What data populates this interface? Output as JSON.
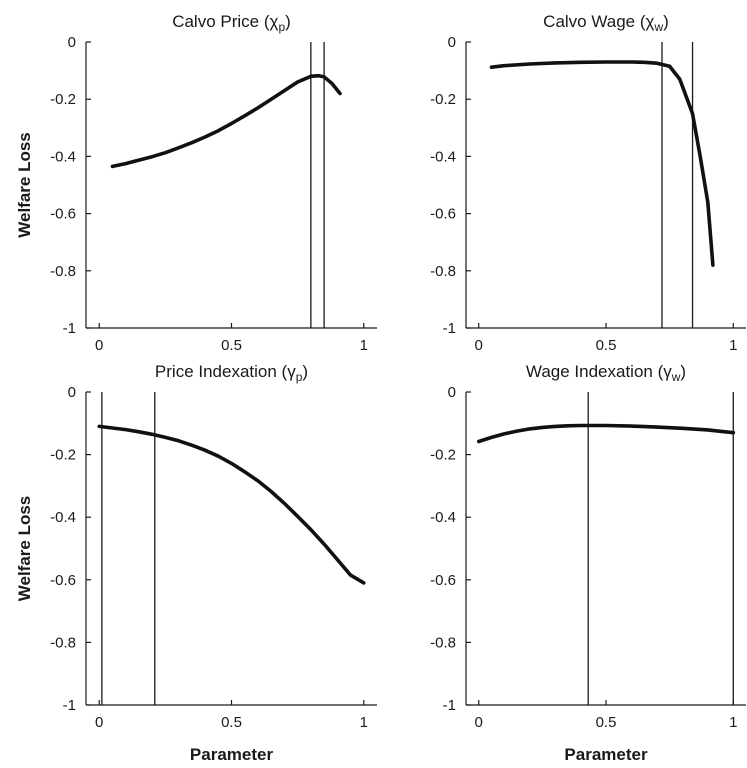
{
  "chart_data": [
    {
      "type": "line",
      "title": "Calvo Price (χp)",
      "title_main": "Calvo Price (",
      "title_sym": "χ",
      "title_sub": "p",
      "title_end": ")",
      "xlabel": "",
      "ylabel": "Welfare Loss",
      "xlim": [
        -0.05,
        1.05
      ],
      "ylim": [
        -1,
        0
      ],
      "xticks": [
        0,
        0.5,
        1
      ],
      "xtick_labels": [
        "0",
        "0.5",
        "1"
      ],
      "yticks": [
        0,
        -0.2,
        -0.4,
        -0.6,
        -0.8,
        -1
      ],
      "ytick_labels": [
        "0",
        "-0.2",
        "-0.4",
        "-0.6",
        "-0.8",
        "-1"
      ],
      "vlines": [
        0.8,
        0.85
      ],
      "series": [
        {
          "x": [
            0.05,
            0.1,
            0.15,
            0.2,
            0.25,
            0.3,
            0.35,
            0.4,
            0.45,
            0.5,
            0.55,
            0.6,
            0.65,
            0.7,
            0.75,
            0.8,
            0.83,
            0.85,
            0.88,
            0.91
          ],
          "y": [
            -0.435,
            -0.425,
            -0.413,
            -0.401,
            -0.387,
            -0.37,
            -0.352,
            -0.332,
            -0.31,
            -0.285,
            -0.258,
            -0.23,
            -0.2,
            -0.17,
            -0.14,
            -0.12,
            -0.118,
            -0.122,
            -0.145,
            -0.18
          ]
        }
      ]
    },
    {
      "type": "line",
      "title": "Calvo Wage (χw)",
      "title_main": "Calvo Wage (",
      "title_sym": "χ",
      "title_sub": "w",
      "title_end": ")",
      "xlabel": "",
      "ylabel": "",
      "xlim": [
        -0.05,
        1.05
      ],
      "ylim": [
        -1,
        0
      ],
      "xticks": [
        0,
        0.5,
        1
      ],
      "xtick_labels": [
        "0",
        "0.5",
        "1"
      ],
      "yticks": [
        0,
        -0.2,
        -0.4,
        -0.6,
        -0.8,
        -1
      ],
      "ytick_labels": [
        "0",
        "-0.2",
        "-0.4",
        "-0.6",
        "-0.8",
        "-1"
      ],
      "vlines": [
        0.72,
        0.84
      ],
      "series": [
        {
          "x": [
            0.05,
            0.1,
            0.2,
            0.3,
            0.4,
            0.5,
            0.6,
            0.65,
            0.7,
            0.75,
            0.79,
            0.84,
            0.87,
            0.9,
            0.92
          ],
          "y": [
            -0.088,
            -0.083,
            -0.077,
            -0.073,
            -0.071,
            -0.07,
            -0.07,
            -0.071,
            -0.074,
            -0.085,
            -0.13,
            -0.25,
            -0.4,
            -0.56,
            -0.78
          ]
        }
      ]
    },
    {
      "type": "line",
      "title": "Price Indexation (γp)",
      "title_main": "Price Indexation (",
      "title_sym": "γ",
      "title_sub": "p",
      "title_end": ")",
      "xlabel": "Parameter",
      "ylabel": "Welfare Loss",
      "xlim": [
        -0.05,
        1.05
      ],
      "ylim": [
        -1,
        0
      ],
      "xticks": [
        0,
        0.5,
        1
      ],
      "xtick_labels": [
        "0",
        "0.5",
        "1"
      ],
      "yticks": [
        0,
        -0.2,
        -0.4,
        -0.6,
        -0.8,
        -1
      ],
      "ytick_labels": [
        "0",
        "-0.2",
        "-0.4",
        "-0.6",
        "-0.8",
        "-1"
      ],
      "vlines": [
        0.01,
        0.21
      ],
      "series": [
        {
          "x": [
            0,
            0.05,
            0.1,
            0.15,
            0.2,
            0.25,
            0.3,
            0.35,
            0.4,
            0.45,
            0.5,
            0.55,
            0.6,
            0.65,
            0.7,
            0.75,
            0.8,
            0.85,
            0.9,
            0.95,
            1.0
          ],
          "y": [
            -0.11,
            -0.115,
            -0.12,
            -0.127,
            -0.135,
            -0.145,
            -0.156,
            -0.17,
            -0.186,
            -0.205,
            -0.228,
            -0.255,
            -0.284,
            -0.318,
            -0.356,
            -0.397,
            -0.44,
            -0.486,
            -0.535,
            -0.585,
            -0.61
          ]
        }
      ]
    },
    {
      "type": "line",
      "title": "Wage Indexation (γw)",
      "title_main": "Wage Indexation (",
      "title_sym": "γ",
      "title_sub": "w",
      "title_end": ")",
      "xlabel": "Parameter",
      "ylabel": "",
      "xlim": [
        -0.05,
        1.05
      ],
      "ylim": [
        -1,
        0
      ],
      "xticks": [
        0,
        0.5,
        1
      ],
      "xtick_labels": [
        "0",
        "0.5",
        "1"
      ],
      "yticks": [
        0,
        -0.2,
        -0.4,
        -0.6,
        -0.8,
        -1
      ],
      "ytick_labels": [
        "0",
        "-0.2",
        "-0.4",
        "-0.6",
        "-0.8",
        "-1"
      ],
      "vlines": [
        0.43,
        1.0
      ],
      "series": [
        {
          "x": [
            0,
            0.05,
            0.1,
            0.15,
            0.2,
            0.25,
            0.3,
            0.35,
            0.4,
            0.45,
            0.5,
            0.6,
            0.7,
            0.8,
            0.9,
            1.0
          ],
          "y": [
            -0.158,
            -0.145,
            -0.134,
            -0.125,
            -0.118,
            -0.113,
            -0.11,
            -0.108,
            -0.107,
            -0.107,
            -0.107,
            -0.109,
            -0.112,
            -0.116,
            -0.121,
            -0.13
          ]
        }
      ]
    }
  ]
}
